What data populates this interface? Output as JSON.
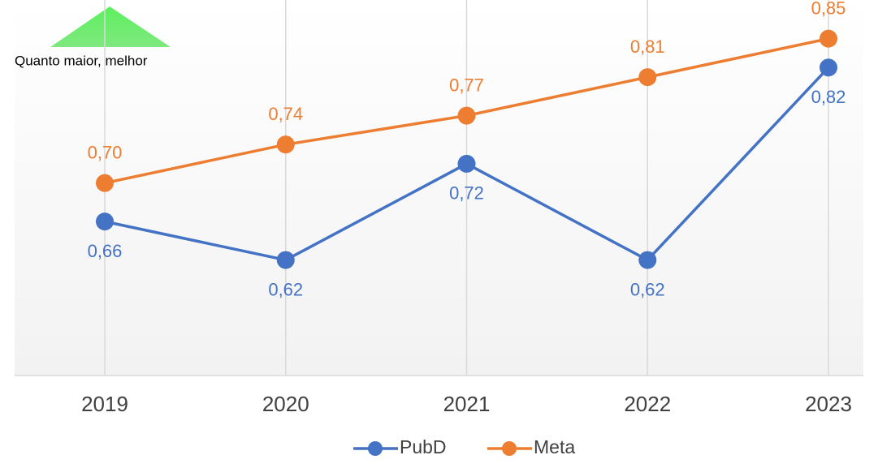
{
  "chart_data": {
    "type": "line",
    "annotation": "Quanto maior, melhor",
    "categories": [
      "2019",
      "2020",
      "2021",
      "2022",
      "2023"
    ],
    "series": [
      {
        "name": "PubD",
        "color": "#4472c4",
        "values": [
          0.66,
          0.62,
          0.72,
          0.62,
          0.82
        ],
        "value_labels": [
          "0,66",
          "0,62",
          "0,72",
          "0,62",
          "0,82"
        ],
        "label_position": "below"
      },
      {
        "name": "Meta",
        "color": "#ed7d31",
        "values": [
          0.7,
          0.74,
          0.77,
          0.81,
          0.85
        ],
        "value_labels": [
          "0,70",
          "0,74",
          "0,77",
          "0,81",
          "0,85"
        ],
        "label_position": "above"
      }
    ],
    "ylim": [
      0.5,
      0.9
    ],
    "legend": "bottom"
  }
}
